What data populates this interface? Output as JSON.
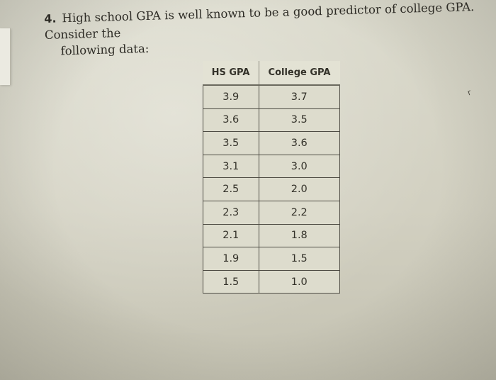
{
  "problem": {
    "number": "4.",
    "text_line1": "High school GPA is well known to be a good predictor of college GPA. Consider the",
    "text_line2": "following data:"
  },
  "table": {
    "headers": [
      "HS GPA",
      "College GPA"
    ],
    "rows": [
      [
        "3.9",
        "3.7"
      ],
      [
        "3.6",
        "3.5"
      ],
      [
        "3.5",
        "3.6"
      ],
      [
        "3.1",
        "3.0"
      ],
      [
        "2.5",
        "2.0"
      ],
      [
        "2.3",
        "2.2"
      ],
      [
        "2.1",
        "1.8"
      ],
      [
        "1.9",
        "1.5"
      ],
      [
        "1.5",
        "1.0"
      ]
    ]
  },
  "margin_mark": "r"
}
